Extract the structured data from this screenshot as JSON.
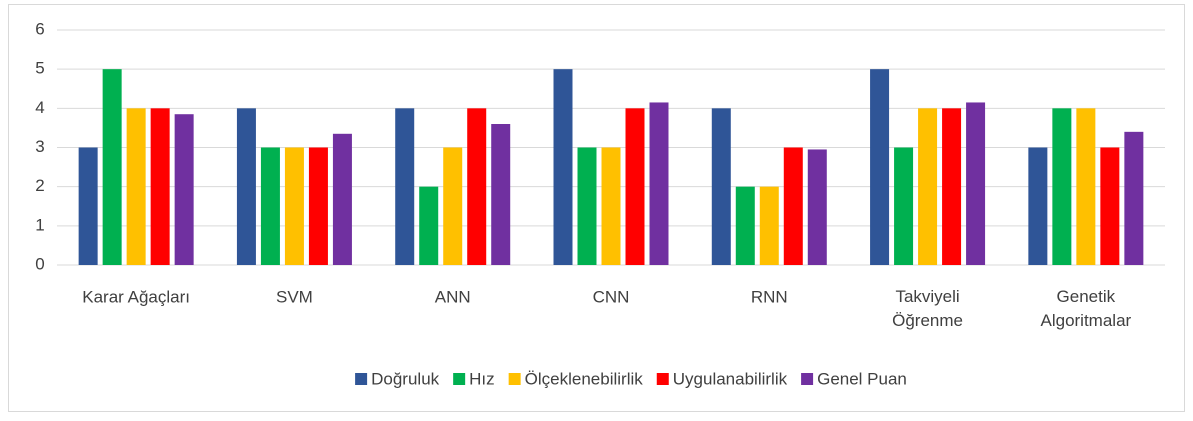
{
  "chart_data": {
    "type": "bar",
    "categories": [
      "Karar Ağaçları",
      "SVM",
      "ANN",
      "CNN",
      "RNN",
      "Takviyeli Öğrenme",
      "Genetik Algoritmalar"
    ],
    "series": [
      {
        "name": "Doğruluk",
        "color": "#2f5597",
        "values": [
          3,
          4,
          4,
          5,
          4,
          5,
          3
        ]
      },
      {
        "name": "Hız",
        "color": "#00b050",
        "values": [
          5,
          3,
          2,
          3,
          2,
          3,
          4
        ]
      },
      {
        "name": "Ölçeklenebilirlik",
        "color": "#ffc000",
        "values": [
          4,
          3,
          3,
          3,
          2,
          4,
          4
        ]
      },
      {
        "name": "Uygulanabilirlik",
        "color": "#ff0000",
        "values": [
          4,
          3,
          4,
          4,
          3,
          4,
          3
        ]
      },
      {
        "name": "Genel Puan",
        "color": "#7030a0",
        "values": [
          3.85,
          3.35,
          3.6,
          4.15,
          2.95,
          4.15,
          3.4
        ]
      }
    ],
    "ylim": [
      0,
      6
    ],
    "yticks": [
      0,
      1,
      2,
      3,
      4,
      5,
      6
    ],
    "grid": true,
    "legend": "bottom"
  }
}
